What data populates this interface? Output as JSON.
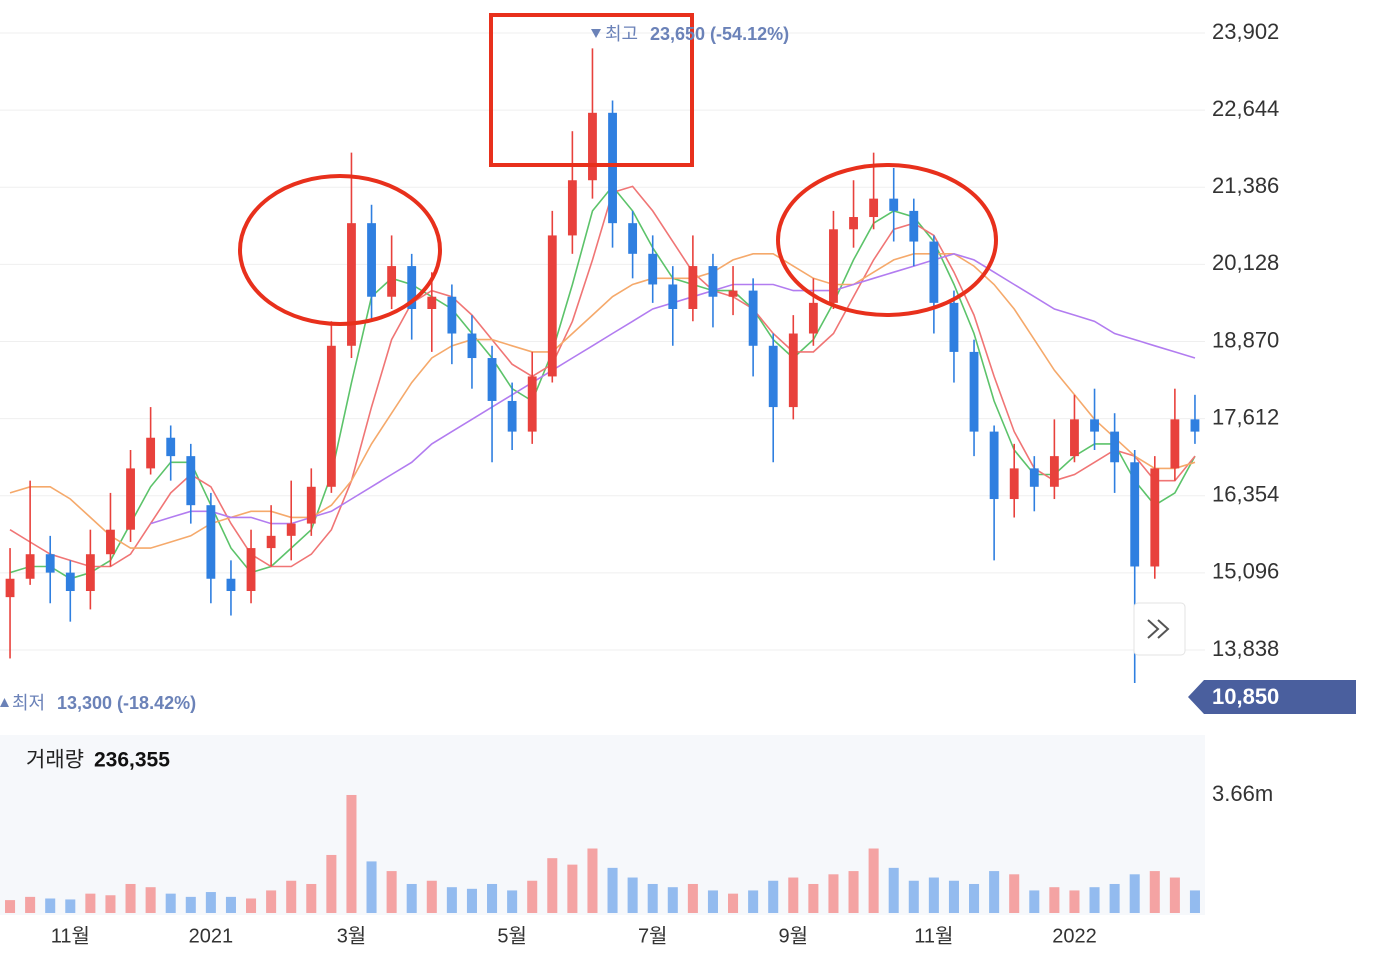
{
  "chart_data": {
    "type": "candlestick",
    "up_color": "#e8413c",
    "down_color": "#2f7fe0",
    "categories": [
      null,
      null,
      null,
      "11월",
      null,
      null,
      null,
      null,
      null,
      null,
      "2021",
      null,
      null,
      null,
      null,
      null,
      null,
      "3월",
      null,
      null,
      null,
      null,
      null,
      null,
      null,
      "5월",
      null,
      null,
      null,
      null,
      null,
      null,
      "7월",
      null,
      null,
      null,
      null,
      null,
      null,
      "9월",
      null,
      null,
      null,
      null,
      null,
      null,
      "11월",
      null,
      null,
      null,
      null,
      null,
      null,
      "2022",
      null,
      null,
      null,
      null,
      null,
      null
    ],
    "open": [
      14700,
      15000,
      15400,
      15100,
      14800,
      15400,
      15800,
      16800,
      17300,
      17000,
      16200,
      15000,
      14800,
      15500,
      15700,
      15900,
      16500,
      18800,
      20800,
      19600,
      20100,
      19400,
      19600,
      19000,
      18600,
      17900,
      17400,
      18300,
      20600,
      21500,
      22600,
      20800,
      20300,
      19800,
      19400,
      20100,
      19600,
      19700,
      18800,
      17800,
      19000,
      19500,
      20700,
      20900,
      21200,
      21000,
      20500,
      19500,
      18700,
      17400,
      16300,
      16800,
      16500,
      17000,
      17600,
      17400,
      16900,
      15200,
      16800,
      17600
    ],
    "high": [
      15500,
      16600,
      15700,
      15300,
      15800,
      16400,
      17100,
      17800,
      17500,
      17200,
      16400,
      15300,
      15800,
      16200,
      16600,
      16800,
      19200,
      21950,
      21100,
      20600,
      20300,
      20000,
      19800,
      19300,
      18800,
      18200,
      18700,
      21000,
      22300,
      23650,
      22800,
      21000,
      20600,
      20100,
      20600,
      20300,
      20100,
      19900,
      19000,
      19300,
      19900,
      21000,
      21500,
      21950,
      21700,
      21200,
      20600,
      19700,
      18900,
      17500,
      17200,
      17000,
      17600,
      18000,
      18100,
      17700,
      17100,
      17000,
      18100,
      18000
    ],
    "low": [
      13700,
      14900,
      14600,
      14300,
      14500,
      15200,
      15600,
      16700,
      16600,
      15900,
      14600,
      14400,
      14600,
      15200,
      15300,
      15700,
      16400,
      18600,
      19200,
      19400,
      18900,
      18700,
      18500,
      18100,
      16900,
      17100,
      17200,
      18200,
      20300,
      21200,
      20400,
      19900,
      19500,
      18800,
      19200,
      19100,
      19300,
      18300,
      16900,
      17600,
      18800,
      19400,
      20400,
      20700,
      20500,
      20100,
      19000,
      18200,
      17000,
      15300,
      16000,
      16100,
      16300,
      16900,
      17100,
      16400,
      13300,
      15000,
      16600,
      17200
    ],
    "close": [
      15000,
      15400,
      15100,
      14800,
      15400,
      15800,
      16800,
      17300,
      17000,
      16200,
      15000,
      14800,
      15500,
      15700,
      15900,
      16500,
      18800,
      20800,
      19600,
      20100,
      19400,
      19600,
      19000,
      18600,
      17900,
      17400,
      18300,
      20600,
      21500,
      22600,
      20800,
      20300,
      19800,
      19400,
      20100,
      19600,
      19700,
      18800,
      17800,
      19000,
      19500,
      20700,
      20900,
      21200,
      21000,
      20500,
      19500,
      18700,
      17400,
      16300,
      16800,
      16500,
      17000,
      17600,
      17400,
      16900,
      15200,
      16800,
      17600,
      17400
    ],
    "series": [
      {
        "color": "#5cc36a",
        "values": [
          15100,
          15200,
          15200,
          15000,
          15100,
          15300,
          15900,
          16500,
          16900,
          16900,
          16200,
          15500,
          15100,
          15200,
          15500,
          15800,
          16700,
          18200,
          19600,
          19900,
          19800,
          19600,
          19400,
          19000,
          18600,
          18100,
          17900,
          18700,
          19800,
          21000,
          21400,
          21000,
          20400,
          19900,
          19800,
          19700,
          19700,
          19400,
          18900,
          18600,
          18900,
          19500,
          20200,
          20800,
          21000,
          20900,
          20500,
          19800,
          19000,
          17900,
          17100,
          16700,
          16700,
          17000,
          17200,
          17200,
          16600,
          16200,
          16400,
          17000
        ]
      },
      {
        "color": "#f07575",
        "values": [
          15800,
          15600,
          15400,
          15300,
          15200,
          15200,
          15400,
          15900,
          16400,
          16700,
          16500,
          15900,
          15400,
          15200,
          15200,
          15400,
          15800,
          16600,
          17800,
          18900,
          19500,
          19700,
          19600,
          19300,
          18900,
          18500,
          18300,
          18500,
          19200,
          20200,
          21300,
          21400,
          21000,
          20500,
          20000,
          19700,
          19600,
          19400,
          19000,
          18700,
          18700,
          19000,
          19600,
          20200,
          20700,
          20800,
          20600,
          20000,
          19300,
          18300,
          17400,
          16800,
          16600,
          16700,
          16900,
          17100,
          17000,
          16600,
          16600,
          17000
        ]
      },
      {
        "color": "#f5a96b",
        "values": [
          16400,
          16500,
          16500,
          16300,
          16000,
          15700,
          15500,
          15500,
          15600,
          15700,
          15900,
          16000,
          16100,
          16100,
          16000,
          16000,
          16200,
          16600,
          17200,
          17700,
          18200,
          18600,
          18800,
          18900,
          18900,
          18800,
          18700,
          18700,
          19000,
          19300,
          19600,
          19800,
          19900,
          19900,
          19900,
          20000,
          20200,
          20300,
          20300,
          20100,
          19900,
          19800,
          19800,
          20000,
          20200,
          20300,
          20300,
          20300,
          20100,
          19800,
          19400,
          18900,
          18400,
          18000,
          17600,
          17300,
          17000,
          16800,
          16800,
          16900
        ]
      },
      {
        "color": "#b27cf0",
        "values": [
          null,
          null,
          null,
          null,
          null,
          null,
          null,
          15900,
          16000,
          16100,
          16100,
          16000,
          16000,
          15900,
          15900,
          16000,
          16100,
          16300,
          16500,
          16700,
          16900,
          17200,
          17400,
          17600,
          17800,
          18000,
          18200,
          18400,
          18600,
          18800,
          19000,
          19200,
          19400,
          19500,
          19600,
          19700,
          19800,
          19800,
          19800,
          19700,
          19700,
          19700,
          19800,
          19900,
          20000,
          20100,
          20200,
          20300,
          20200,
          20000,
          19800,
          19600,
          19400,
          19300,
          19200,
          19000,
          18900,
          18800,
          18700,
          18600
        ]
      }
    ],
    "ylim": [
      12696,
      24440
    ],
    "yticks": [
      {
        "value": 13838,
        "label": "13,838"
      },
      {
        "value": 15096,
        "label": "15,096"
      },
      {
        "value": 16354,
        "label": "16,354"
      },
      {
        "value": 17612,
        "label": "17,612"
      },
      {
        "value": 18870,
        "label": "18,870"
      },
      {
        "value": 20128,
        "label": "20,128"
      },
      {
        "value": 21386,
        "label": "21,386"
      },
      {
        "value": 22644,
        "label": "22,644"
      },
      {
        "value": 23902,
        "label": "23,902"
      }
    ],
    "grid": true,
    "high_annotation": {
      "label": "최고",
      "text": "23,650 (-54.12%)"
    },
    "low_annotation": {
      "label": "최저",
      "text": "13,300 (-18.42%)"
    },
    "current_price": "10,850",
    "volume": {
      "label": "거래량",
      "current": "236,355",
      "up_color": "#f4a3a3",
      "down_color": "#93bbef",
      "values": [
        400000,
        500000,
        450000,
        420000,
        600000,
        550000,
        900000,
        800000,
        600000,
        500000,
        650000,
        500000,
        450000,
        700000,
        1000000,
        900000,
        1800000,
        3660000,
        1600000,
        1300000,
        900000,
        1000000,
        800000,
        750000,
        900000,
        700000,
        1000000,
        1700000,
        1500000,
        2000000,
        1400000,
        1100000,
        900000,
        800000,
        900000,
        700000,
        600000,
        700000,
        1000000,
        1100000,
        900000,
        1200000,
        1300000,
        2000000,
        1400000,
        1000000,
        1100000,
        1000000,
        900000,
        1300000,
        1200000,
        700000,
        800000,
        700000,
        800000,
        900000,
        1200000,
        1300000,
        1100000,
        700000
      ],
      "ylim": [
        0,
        5520000
      ],
      "yticks": [
        {
          "value": 3660000,
          "label": "3.66m"
        }
      ]
    }
  }
}
